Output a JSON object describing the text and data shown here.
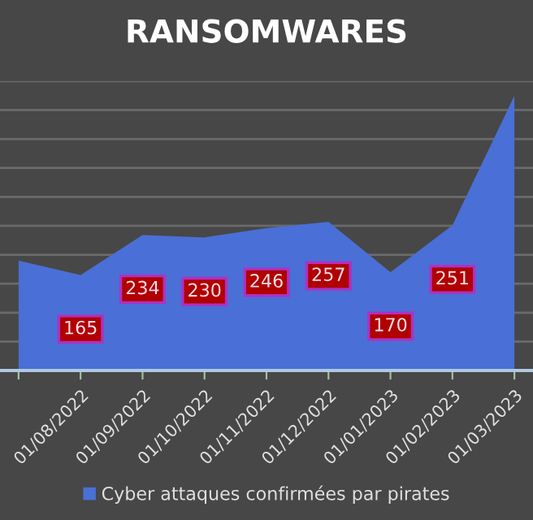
{
  "chart_data": {
    "type": "area",
    "title": "RANSOMWARES",
    "categories": [
      null,
      "01/08/2022",
      "01/09/2022",
      "01/10/2022",
      "01/11/2022",
      "01/12/2022",
      "01/01/2023",
      "01/02/2023",
      "01/03/2023"
    ],
    "series": [
      {
        "name": "Cyber attaques confirmées par pirates",
        "color": "#4a6fd6",
        "values": [
          190,
          165,
          234,
          230,
          246,
          257,
          170,
          251,
          475
        ],
        "value_labels": [
          null,
          "165",
          "234",
          "230",
          "246",
          "257",
          "170",
          "251",
          null
        ]
      }
    ],
    "ylim": [
      0,
      500
    ],
    "yticks": [
      {
        "value": 0,
        "label": null
      },
      {
        "value": 50,
        "label": null
      },
      {
        "value": 100,
        "label": null
      },
      {
        "value": 150,
        "label": null
      },
      {
        "value": 200,
        "label": null
      },
      {
        "value": 250,
        "label": null
      },
      {
        "value": 300,
        "label": null
      },
      {
        "value": 350,
        "label": null
      },
      {
        "value": 400,
        "label": null
      },
      {
        "value": 450,
        "label": null
      },
      {
        "value": 500,
        "label": null
      }
    ],
    "grid": "y",
    "legend": "bottom",
    "tick_labels": "x"
  }
}
